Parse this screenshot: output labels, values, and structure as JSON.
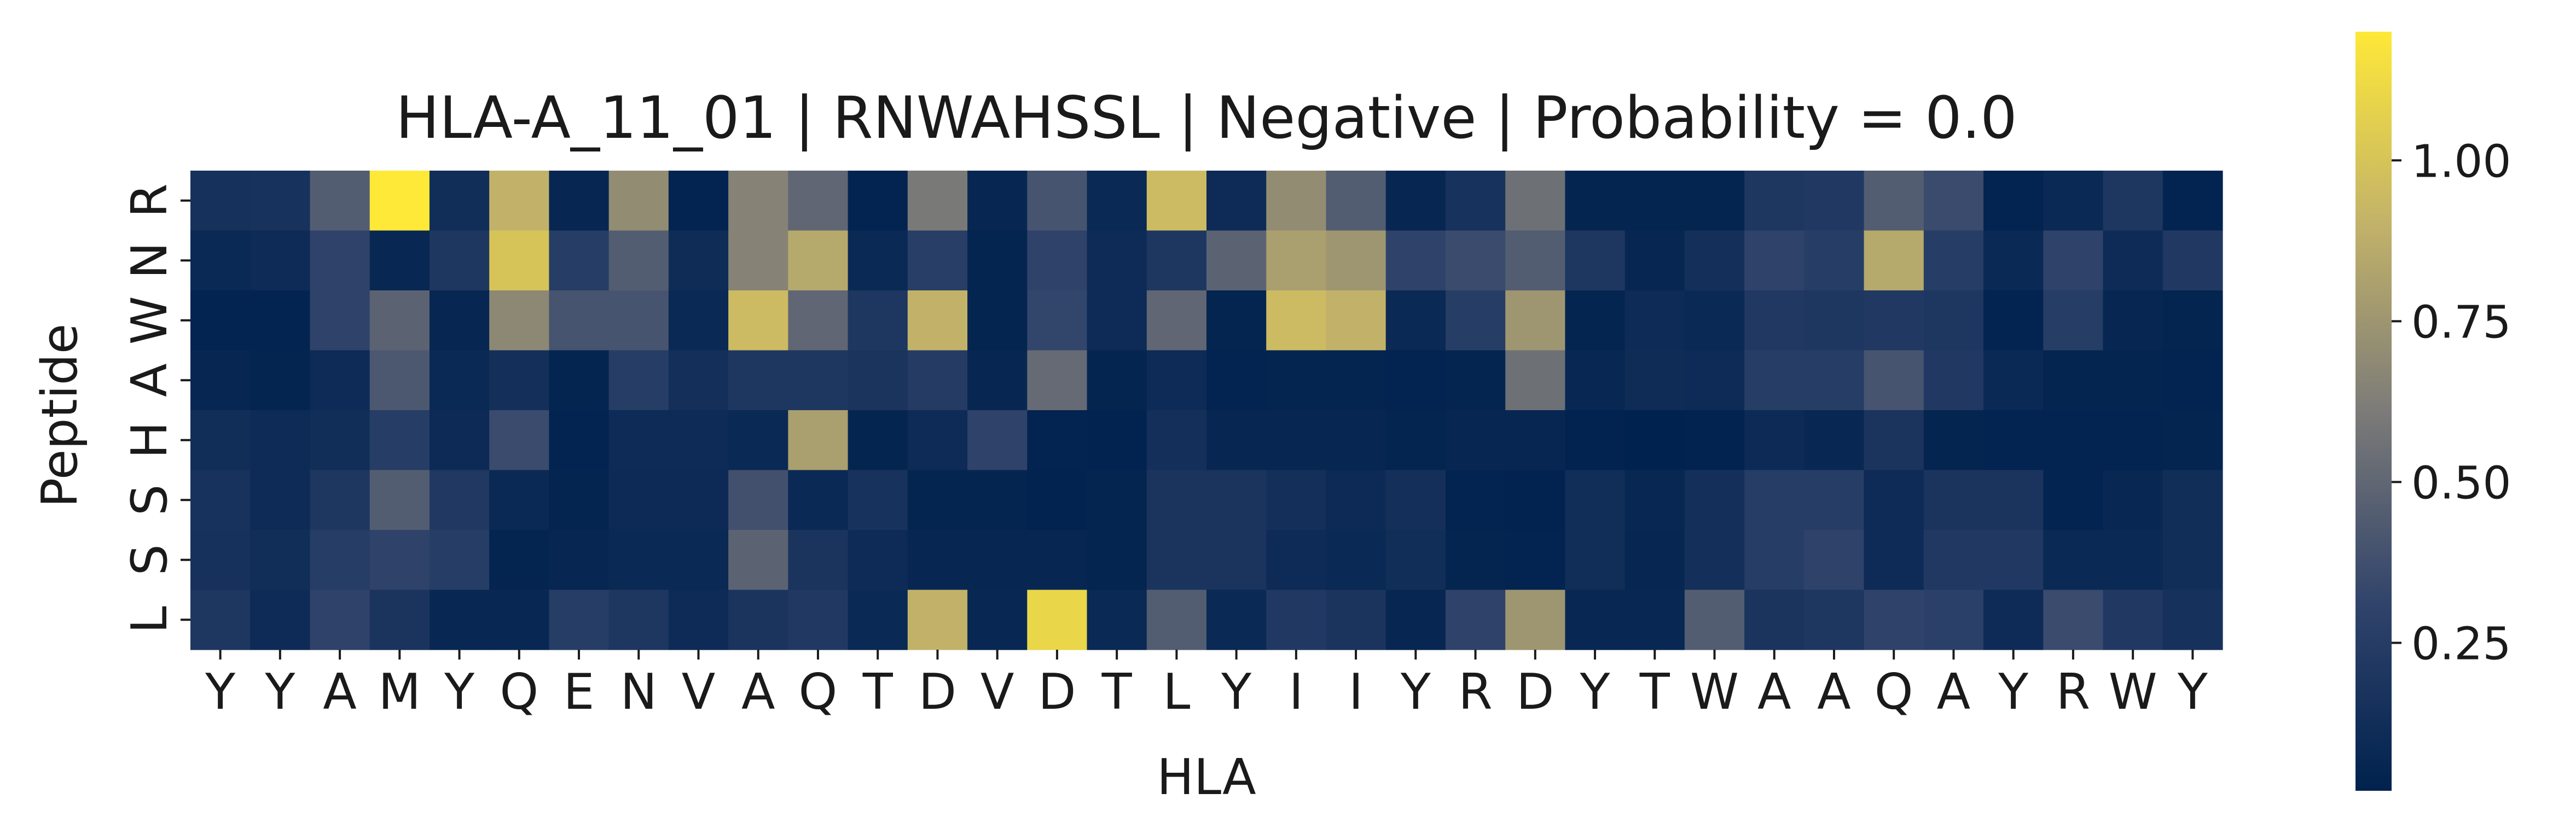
{
  "chart_data": {
    "type": "heatmap",
    "title": "HLA-A_11_01 | RNWAHSSL | Negative | Probability = 0.0",
    "xlabel": "HLA",
    "ylabel": "Peptide",
    "x_categories": [
      "Y",
      "Y",
      "A",
      "M",
      "Y",
      "Q",
      "E",
      "N",
      "V",
      "A",
      "Q",
      "T",
      "D",
      "V",
      "D",
      "T",
      "L",
      "Y",
      "I",
      "I",
      "Y",
      "R",
      "D",
      "Y",
      "T",
      "W",
      "A",
      "A",
      "Q",
      "A",
      "Y",
      "R",
      "W",
      "Y"
    ],
    "y_categories": [
      "R",
      "N",
      "W",
      "A",
      "H",
      "S",
      "S",
      "L"
    ],
    "values": [
      [
        0.15,
        0.16,
        0.45,
        1.2,
        0.12,
        0.9,
        0.06,
        0.7,
        0.04,
        0.65,
        0.5,
        0.04,
        0.6,
        0.06,
        0.4,
        0.08,
        0.95,
        0.1,
        0.7,
        0.45,
        0.06,
        0.16,
        0.55,
        0.05,
        0.05,
        0.05,
        0.2,
        0.22,
        0.45,
        0.35,
        0.04,
        0.08,
        0.2,
        0.04
      ],
      [
        0.08,
        0.1,
        0.3,
        0.07,
        0.2,
        1.0,
        0.25,
        0.45,
        0.11,
        0.65,
        0.85,
        0.08,
        0.26,
        0.05,
        0.3,
        0.1,
        0.2,
        0.48,
        0.8,
        0.75,
        0.3,
        0.35,
        0.45,
        0.2,
        0.06,
        0.14,
        0.3,
        0.25,
        0.85,
        0.25,
        0.08,
        0.3,
        0.1,
        0.22
      ],
      [
        0.04,
        0.04,
        0.3,
        0.48,
        0.06,
        0.68,
        0.4,
        0.4,
        0.08,
        0.95,
        0.5,
        0.2,
        0.9,
        0.05,
        0.32,
        0.1,
        0.5,
        0.05,
        0.95,
        0.9,
        0.08,
        0.25,
        0.75,
        0.05,
        0.1,
        0.08,
        0.22,
        0.2,
        0.22,
        0.2,
        0.04,
        0.25,
        0.06,
        0.05
      ],
      [
        0.06,
        0.05,
        0.1,
        0.42,
        0.08,
        0.14,
        0.05,
        0.25,
        0.14,
        0.2,
        0.2,
        0.18,
        0.24,
        0.06,
        0.52,
        0.05,
        0.1,
        0.04,
        0.05,
        0.05,
        0.04,
        0.05,
        0.55,
        0.07,
        0.11,
        0.1,
        0.25,
        0.25,
        0.4,
        0.22,
        0.08,
        0.05,
        0.05,
        0.04
      ],
      [
        0.12,
        0.1,
        0.12,
        0.25,
        0.09,
        0.35,
        0.04,
        0.1,
        0.1,
        0.08,
        0.8,
        0.05,
        0.1,
        0.3,
        0.04,
        0.03,
        0.14,
        0.06,
        0.06,
        0.06,
        0.05,
        0.06,
        0.06,
        0.03,
        0.02,
        0.03,
        0.09,
        0.07,
        0.18,
        0.05,
        0.04,
        0.04,
        0.04,
        0.05
      ],
      [
        0.16,
        0.1,
        0.2,
        0.45,
        0.22,
        0.08,
        0.05,
        0.09,
        0.09,
        0.38,
        0.08,
        0.16,
        0.05,
        0.05,
        0.03,
        0.05,
        0.18,
        0.18,
        0.14,
        0.09,
        0.14,
        0.04,
        0.03,
        0.12,
        0.07,
        0.14,
        0.25,
        0.25,
        0.1,
        0.18,
        0.18,
        0.04,
        0.07,
        0.12
      ],
      [
        0.15,
        0.12,
        0.25,
        0.3,
        0.25,
        0.05,
        0.06,
        0.08,
        0.08,
        0.48,
        0.18,
        0.1,
        0.06,
        0.06,
        0.06,
        0.05,
        0.18,
        0.18,
        0.1,
        0.08,
        0.12,
        0.05,
        0.04,
        0.12,
        0.06,
        0.14,
        0.25,
        0.3,
        0.1,
        0.22,
        0.22,
        0.08,
        0.08,
        0.12
      ],
      [
        0.2,
        0.1,
        0.3,
        0.18,
        0.07,
        0.07,
        0.25,
        0.2,
        0.1,
        0.18,
        0.22,
        0.08,
        0.9,
        0.07,
        1.1,
        0.08,
        0.45,
        0.08,
        0.22,
        0.18,
        0.06,
        0.3,
        0.75,
        0.07,
        0.07,
        0.45,
        0.18,
        0.2,
        0.3,
        0.28,
        0.1,
        0.35,
        0.22,
        0.15
      ]
    ],
    "colormap": "cividis",
    "colorbar": {
      "ticks": [
        0.25,
        0.5,
        0.75,
        1.0
      ],
      "tick_labels": [
        "0.25",
        "0.50",
        "0.75",
        "1.00"
      ],
      "range": [
        0.02,
        1.2
      ]
    },
    "grid": false,
    "legend": "colorbar-right"
  }
}
